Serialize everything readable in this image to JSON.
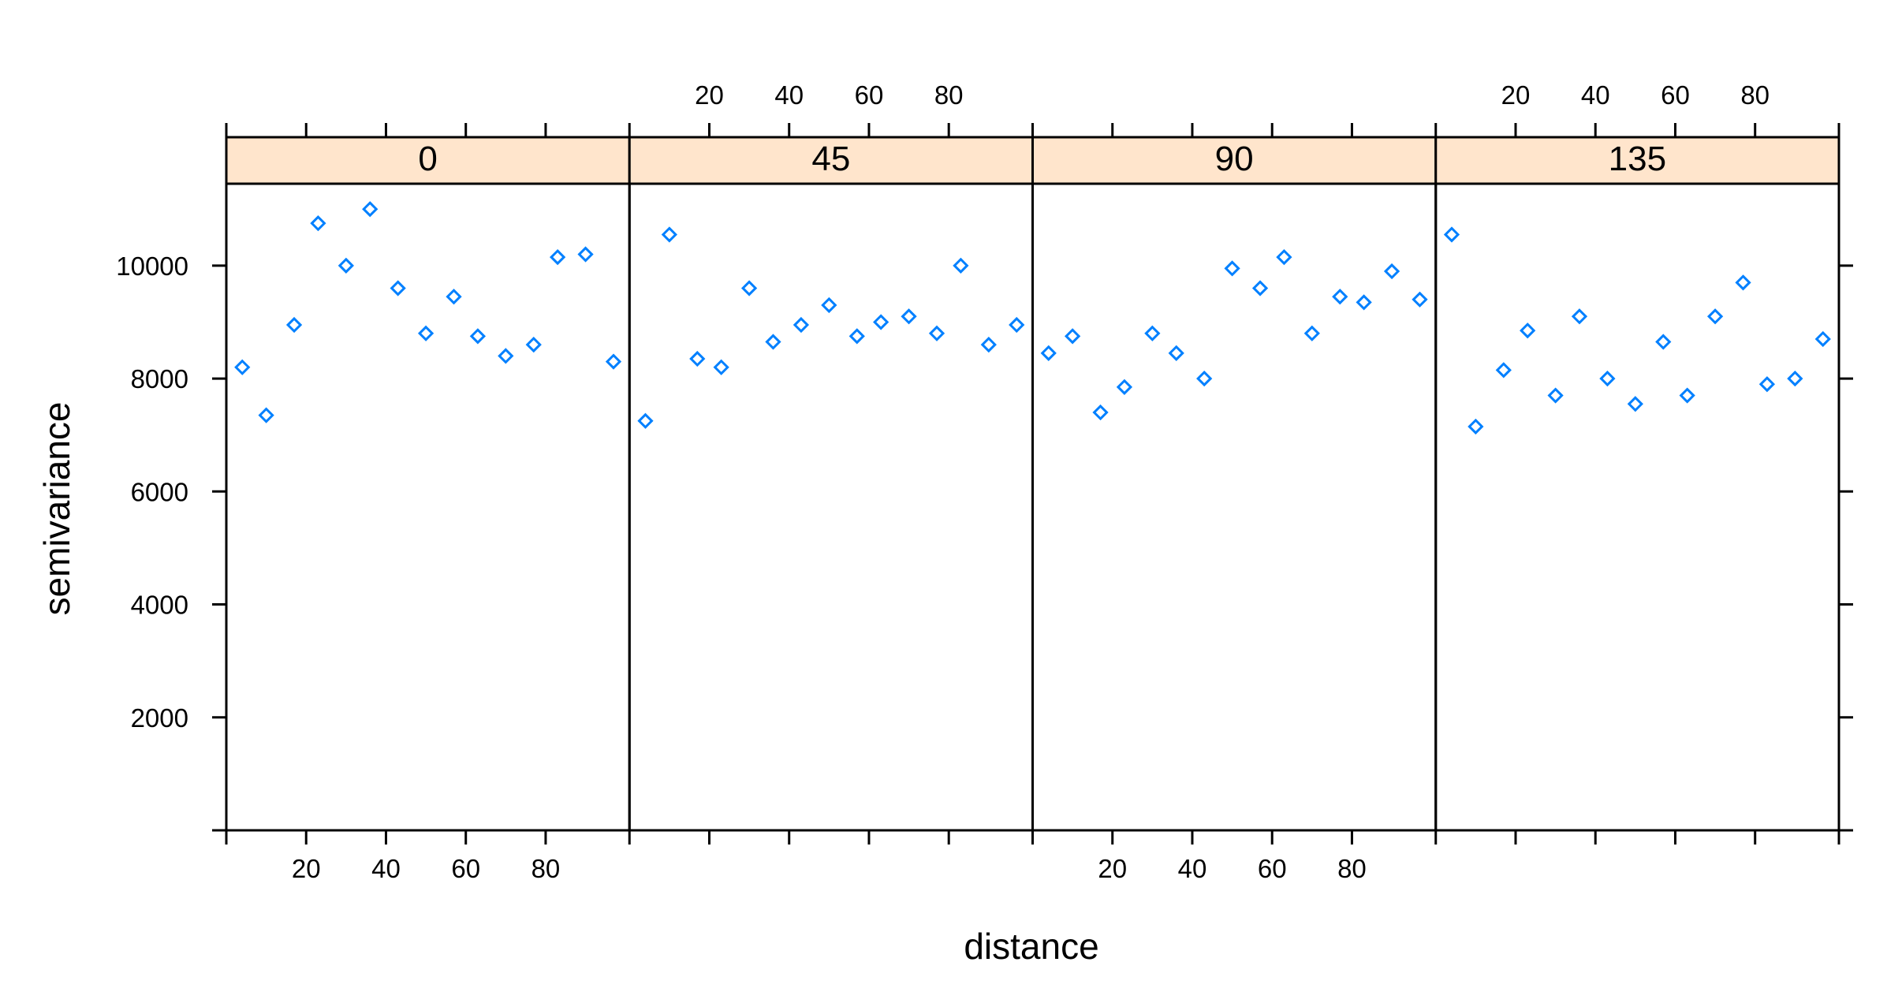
{
  "chart_data": {
    "type": "scatter",
    "layout": "lattice-panels-1x4",
    "xlabel": "distance",
    "ylabel": "semivariance",
    "xlim": [
      0,
      101
    ],
    "ylim": [
      0,
      11450
    ],
    "x_ticks": [
      20,
      40,
      60,
      80
    ],
    "y_ticks": [
      2000,
      4000,
      6000,
      8000,
      10000
    ],
    "grid": false,
    "strip_color": "#ffe5cc",
    "point_color": "#0080ff",
    "point_shape": "open-diamond",
    "panels": [
      {
        "strip": "0",
        "x": [
          4,
          10,
          17,
          23,
          30,
          36,
          43,
          50,
          57,
          63,
          70,
          77,
          83,
          90,
          97
        ],
        "y": [
          8200,
          7350,
          8950,
          10750,
          10000,
          11000,
          9600,
          8800,
          9450,
          8750,
          8400,
          8600,
          10150,
          10200,
          8300
        ]
      },
      {
        "strip": "45",
        "x": [
          4,
          10,
          17,
          23,
          30,
          36,
          43,
          50,
          57,
          63,
          70,
          77,
          83,
          90,
          97
        ],
        "y": [
          7250,
          10550,
          8350,
          8200,
          9600,
          8650,
          8950,
          9300,
          8750,
          9000,
          9100,
          8800,
          10000,
          8600,
          8950
        ]
      },
      {
        "strip": "90",
        "x": [
          4,
          10,
          17,
          23,
          30,
          36,
          43,
          50,
          57,
          63,
          70,
          77,
          83,
          90,
          97
        ],
        "y": [
          8450,
          8750,
          7400,
          7850,
          8800,
          8450,
          8000,
          9950,
          9600,
          10150,
          8800,
          9450,
          9350,
          9900,
          9400
        ]
      },
      {
        "strip": "135",
        "x": [
          4,
          10,
          17,
          23,
          30,
          36,
          43,
          50,
          57,
          63,
          70,
          77,
          83,
          90,
          97
        ],
        "y": [
          10550,
          7150,
          8150,
          8850,
          7700,
          9100,
          8000,
          7550,
          8650,
          7700,
          9100,
          9700,
          7900,
          8000,
          8700
        ]
      }
    ]
  }
}
